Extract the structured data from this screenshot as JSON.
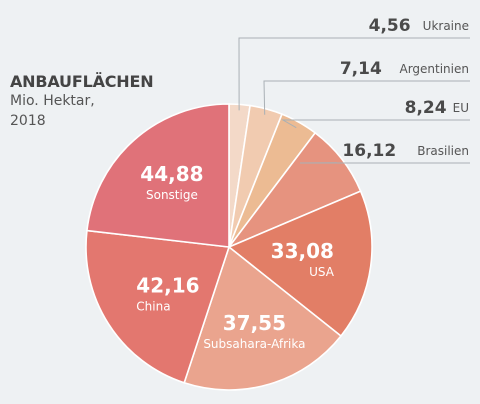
{
  "chart_data": {
    "type": "pie",
    "title": "ANBAUFLÄCHEN",
    "subtitle_line1": "Mio. Hektar,",
    "subtitle_line2": "2018",
    "slices": [
      {
        "label": "Ukraine",
        "value": 4.56,
        "value_label": "4,56",
        "color": "#f3d9c8"
      },
      {
        "label": "Argentinien",
        "value": 7.14,
        "value_label": "7,14",
        "color": "#f1cbb0"
      },
      {
        "label": "EU",
        "value": 8.24,
        "value_label": "8,24",
        "color": "#ecbb93"
      },
      {
        "label": "Brasilien",
        "value": 16.12,
        "value_label": "16,12",
        "color": "#e6937f"
      },
      {
        "label": "USA",
        "value": 33.08,
        "value_label": "33,08",
        "color": "#e27e66"
      },
      {
        "label": "Subsahara-Afrika",
        "value": 37.55,
        "value_label": "37,55",
        "color": "#eaa48e"
      },
      {
        "label": "China",
        "value": 42.16,
        "value_label": "42,16",
        "color": "#e3776f"
      },
      {
        "label": "Sonstige",
        "value": 44.88,
        "value_label": "44,88",
        "color": "#e07279"
      }
    ]
  }
}
